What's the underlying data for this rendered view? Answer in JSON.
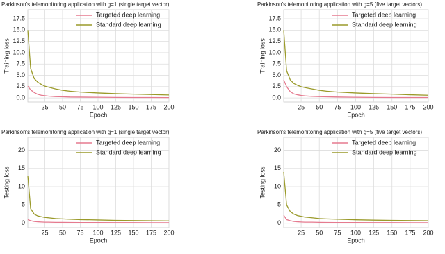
{
  "chart_data": [
    {
      "type": "line",
      "title": "Parkinson's telemonitoring application with g=1 (single target vector)",
      "x_label": "Epoch",
      "y_label": "Training loss",
      "x": [
        1,
        5,
        10,
        15,
        20,
        25,
        30,
        40,
        50,
        60,
        75,
        100,
        125,
        150,
        175,
        200
      ],
      "series": [
        {
          "name": "Targeted deep learning",
          "color": "#e57a8f",
          "values": [
            2.6,
            1.8,
            1.2,
            0.8,
            0.6,
            0.5,
            0.4,
            0.3,
            0.25,
            0.2,
            0.18,
            0.15,
            0.12,
            0.1,
            0.1,
            0.08
          ]
        },
        {
          "name": "Standard deep learning",
          "color": "#9a9a2a",
          "values": [
            15,
            6.5,
            4.3,
            3.5,
            3.0,
            2.6,
            2.4,
            2.0,
            1.7,
            1.5,
            1.3,
            1.1,
            0.95,
            0.85,
            0.75,
            0.65
          ]
        }
      ],
      "xlim": [
        1,
        200
      ],
      "xticks": [
        25,
        50,
        75,
        100,
        125,
        150,
        175,
        200
      ],
      "ylim": [
        -0.9,
        19.5
      ],
      "yticks": [
        {
          "value": 0,
          "label": "0.0"
        },
        2.5,
        {
          "value": 5,
          "label": "5.0"
        },
        7.5,
        {
          "value": 10,
          "label": "10.0"
        },
        12.5,
        {
          "value": 15,
          "label": "15.0"
        },
        17.5
      ],
      "grid": true,
      "legend": "upper right"
    },
    {
      "type": "line",
      "title": "Parkinson's telemonitoring application with g=5 (five target vectors)",
      "x_label": "Epoch",
      "y_label": "Training loss",
      "x": [
        1,
        5,
        10,
        15,
        20,
        25,
        30,
        40,
        50,
        60,
        75,
        100,
        125,
        150,
        175,
        200
      ],
      "series": [
        {
          "name": "Targeted deep learning",
          "color": "#e57a8f",
          "values": [
            4,
            2.5,
            1.4,
            0.9,
            0.7,
            0.55,
            0.45,
            0.35,
            0.3,
            0.25,
            0.2,
            0.15,
            0.12,
            0.1,
            0.1,
            0.1
          ]
        },
        {
          "name": "Standard deep learning",
          "color": "#9a9a2a",
          "values": [
            15,
            6,
            4.0,
            3.2,
            2.8,
            2.5,
            2.3,
            2.0,
            1.7,
            1.5,
            1.3,
            1.1,
            0.95,
            0.85,
            0.7,
            0.6
          ]
        }
      ],
      "xlim": [
        1,
        200
      ],
      "xticks": [
        25,
        50,
        75,
        100,
        125,
        150,
        175,
        200
      ],
      "ylim": [
        -0.9,
        19.5
      ],
      "yticks": [
        {
          "value": 0,
          "label": "0.0"
        },
        2.5,
        {
          "value": 5,
          "label": "5.0"
        },
        7.5,
        {
          "value": 10,
          "label": "10.0"
        },
        12.5,
        {
          "value": 15,
          "label": "15.0"
        },
        17.5
      ],
      "grid": true,
      "legend": "upper right"
    },
    {
      "type": "line",
      "title": "Parkinson's telemonitoring application with g=1 (single target vector)",
      "x_label": "Epoch",
      "y_label": "Testing loss",
      "x": [
        1,
        5,
        10,
        15,
        20,
        25,
        30,
        40,
        50,
        60,
        75,
        100,
        125,
        150,
        175,
        200
      ],
      "series": [
        {
          "name": "Targeted deep learning",
          "color": "#e57a8f",
          "values": [
            1.0,
            0.7,
            0.5,
            0.4,
            0.35,
            0.3,
            0.3,
            0.25,
            0.25,
            0.22,
            0.2,
            0.2,
            0.18,
            0.18,
            0.15,
            0.15
          ]
        },
        {
          "name": "Standard deep learning",
          "color": "#9a9a2a",
          "values": [
            13,
            4,
            2.5,
            2.0,
            1.8,
            1.6,
            1.5,
            1.3,
            1.2,
            1.1,
            1.0,
            0.9,
            0.8,
            0.75,
            0.7,
            0.65
          ]
        }
      ],
      "xlim": [
        1,
        200
      ],
      "xticks": [
        25,
        50,
        75,
        100,
        125,
        150,
        175,
        200
      ],
      "ylim": [
        -1.2,
        23.5
      ],
      "yticks": [
        0,
        5,
        10,
        15,
        20
      ],
      "grid": true,
      "legend": "upper right"
    },
    {
      "type": "line",
      "title": "Parkinson's telemonitoring application with g=5 (five target vectors)",
      "x_label": "Epoch",
      "y_label": "Testing loss",
      "x": [
        1,
        5,
        10,
        15,
        20,
        25,
        30,
        40,
        50,
        60,
        75,
        100,
        125,
        150,
        175,
        200
      ],
      "series": [
        {
          "name": "Targeted deep learning",
          "color": "#e57a8f",
          "values": [
            2.2,
            1.0,
            0.7,
            0.5,
            0.4,
            0.35,
            0.3,
            0.3,
            0.25,
            0.22,
            0.2,
            0.2,
            0.18,
            0.18,
            0.15,
            0.15
          ]
        },
        {
          "name": "Standard deep learning",
          "color": "#9a9a2a",
          "values": [
            14,
            5,
            3.2,
            2.5,
            2.1,
            1.9,
            1.7,
            1.5,
            1.3,
            1.2,
            1.1,
            0.95,
            0.85,
            0.8,
            0.75,
            0.7
          ]
        }
      ],
      "xlim": [
        1,
        200
      ],
      "xticks": [
        25,
        50,
        75,
        100,
        125,
        150,
        175,
        200
      ],
      "ylim": [
        -1.2,
        23.5
      ],
      "yticks": [
        0,
        5,
        10,
        15,
        20
      ],
      "grid": true,
      "legend": "upper right"
    }
  ]
}
